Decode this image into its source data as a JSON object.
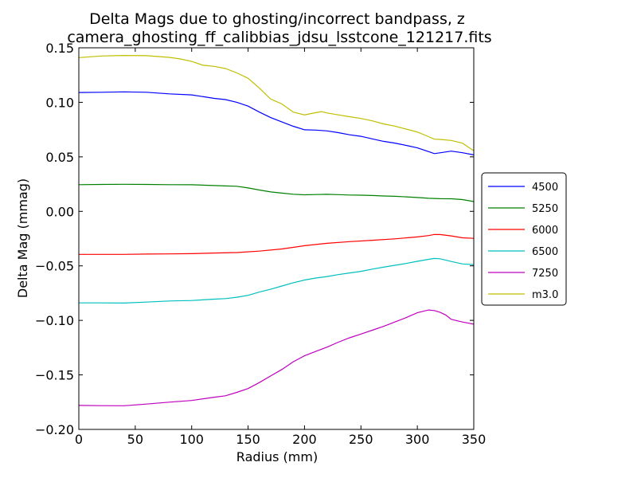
{
  "chart_data": {
    "type": "line",
    "title": [
      "Delta Mags due to ghosting/incorrect bandpass, z",
      "camera_ghosting_ff_calibbias_jdsu_lsstcone_121217.fits"
    ],
    "xlabel": "Radius (mm)",
    "ylabel": "Delta Mag (mmag)",
    "xlim": [
      0,
      350
    ],
    "ylim": [
      -0.2,
      0.15
    ],
    "xticks": [
      0,
      50,
      100,
      150,
      200,
      250,
      300,
      350
    ],
    "xtick_labels": [
      "0",
      "50",
      "100",
      "150",
      "200",
      "250",
      "300",
      "350"
    ],
    "yticks": [
      0.15,
      0.1,
      0.05,
      0.0,
      -0.05,
      -0.1,
      -0.15,
      -0.2
    ],
    "ytick_labels": [
      "0.15",
      "0.10",
      "0.05",
      "0.00",
      "−0.05",
      "−0.10",
      "−0.15",
      "−0.20"
    ],
    "grid": false,
    "legend": "outside-right",
    "series": [
      {
        "name": "4500",
        "color": "#0000ff",
        "x": [
          0,
          20,
          40,
          60,
          80,
          100,
          120,
          130,
          140,
          150,
          160,
          170,
          180,
          190,
          200,
          210,
          220,
          230,
          240,
          250,
          260,
          270,
          280,
          290,
          300,
          310,
          315,
          320,
          330,
          340,
          350
        ],
        "y": [
          0.109,
          0.1092,
          0.1096,
          0.1092,
          0.1078,
          0.1068,
          0.1036,
          0.1025,
          0.1,
          0.0965,
          0.091,
          0.086,
          0.082,
          0.078,
          0.0748,
          0.0745,
          0.0738,
          0.0722,
          0.0702,
          0.0688,
          0.0665,
          0.0642,
          0.0626,
          0.0605,
          0.0582,
          0.0548,
          0.053,
          0.0537,
          0.0552,
          0.0538,
          0.0518
        ]
      },
      {
        "name": "5250",
        "color": "#008000",
        "x": [
          0,
          20,
          40,
          60,
          80,
          100,
          120,
          130,
          140,
          150,
          160,
          170,
          180,
          190,
          200,
          210,
          220,
          230,
          240,
          250,
          260,
          270,
          280,
          290,
          300,
          310,
          320,
          330,
          340,
          350
        ],
        "y": [
          0.0245,
          0.0247,
          0.0248,
          0.0247,
          0.0245,
          0.0244,
          0.0237,
          0.0233,
          0.023,
          0.0215,
          0.0196,
          0.0178,
          0.0167,
          0.0157,
          0.0152,
          0.0154,
          0.0156,
          0.0153,
          0.015,
          0.0148,
          0.0145,
          0.0141,
          0.0138,
          0.0133,
          0.0127,
          0.012,
          0.0116,
          0.0115,
          0.0108,
          0.009
        ]
      },
      {
        "name": "6000",
        "color": "#ff0000",
        "x": [
          0,
          20,
          40,
          60,
          80,
          100,
          120,
          140,
          160,
          180,
          200,
          220,
          240,
          260,
          280,
          300,
          310,
          315,
          320,
          330,
          340,
          350
        ],
        "y": [
          -0.0395,
          -0.0395,
          -0.0395,
          -0.0392,
          -0.039,
          -0.0388,
          -0.0382,
          -0.0378,
          -0.0365,
          -0.0345,
          -0.0315,
          -0.0293,
          -0.0278,
          -0.0265,
          -0.0252,
          -0.0235,
          -0.0222,
          -0.0212,
          -0.0213,
          -0.0225,
          -0.0243,
          -0.0248
        ]
      },
      {
        "name": "6500",
        "color": "#00bfbf",
        "x": [
          0,
          20,
          40,
          60,
          80,
          100,
          120,
          130,
          140,
          150,
          160,
          170,
          180,
          190,
          200,
          210,
          220,
          230,
          240,
          250,
          260,
          270,
          280,
          290,
          300,
          310,
          315,
          320,
          330,
          340,
          350
        ],
        "y": [
          -0.084,
          -0.084,
          -0.0841,
          -0.0832,
          -0.0822,
          -0.0818,
          -0.0805,
          -0.08,
          -0.0788,
          -0.077,
          -0.074,
          -0.0715,
          -0.0685,
          -0.0655,
          -0.063,
          -0.0612,
          -0.0598,
          -0.058,
          -0.0565,
          -0.055,
          -0.053,
          -0.0512,
          -0.0495,
          -0.0478,
          -0.0458,
          -0.044,
          -0.0432,
          -0.0435,
          -0.046,
          -0.0482,
          -0.0488
        ]
      },
      {
        "name": "7250",
        "color": "#bf00bf",
        "x": [
          0,
          20,
          40,
          60,
          80,
          100,
          120,
          130,
          140,
          150,
          160,
          170,
          180,
          190,
          200,
          210,
          220,
          230,
          240,
          250,
          260,
          270,
          280,
          290,
          300,
          310,
          315,
          320,
          325,
          330,
          340,
          350
        ],
        "y": [
          -0.178,
          -0.1782,
          -0.1783,
          -0.1768,
          -0.175,
          -0.1735,
          -0.1705,
          -0.1692,
          -0.166,
          -0.1625,
          -0.157,
          -0.151,
          -0.145,
          -0.138,
          -0.1325,
          -0.1285,
          -0.1245,
          -0.12,
          -0.116,
          -0.1125,
          -0.109,
          -0.1055,
          -0.1015,
          -0.0975,
          -0.093,
          -0.0905,
          -0.091,
          -0.0925,
          -0.095,
          -0.099,
          -0.1015,
          -0.1035
        ]
      },
      {
        "name": "m3.0",
        "color": "#bfbf00",
        "x": [
          0,
          20,
          40,
          60,
          80,
          90,
          100,
          110,
          120,
          130,
          140,
          150,
          160,
          170,
          180,
          190,
          200,
          210,
          215,
          220,
          230,
          240,
          250,
          260,
          270,
          280,
          290,
          300,
          310,
          315,
          320,
          330,
          340,
          350
        ],
        "y": [
          0.141,
          0.1425,
          0.143,
          0.1428,
          0.1412,
          0.1398,
          0.1375,
          0.134,
          0.133,
          0.131,
          0.127,
          0.122,
          0.113,
          0.103,
          0.0985,
          0.091,
          0.0885,
          0.0905,
          0.0915,
          0.0902,
          0.0885,
          0.0868,
          0.0852,
          0.083,
          0.0802,
          0.0782,
          0.0755,
          0.0728,
          0.0685,
          0.0662,
          0.066,
          0.065,
          0.0625,
          0.0555
        ]
      }
    ]
  }
}
